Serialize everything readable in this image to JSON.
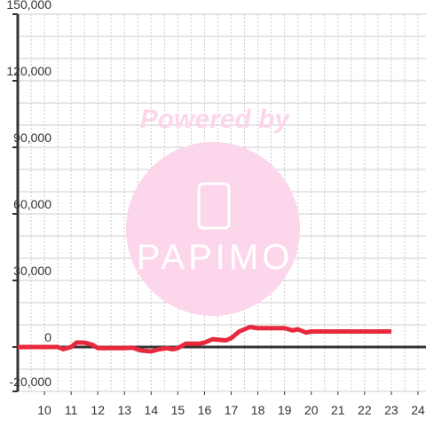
{
  "chart_data": {
    "type": "line",
    "watermark": {
      "top": "Powered by",
      "logo": "PAPIMO"
    },
    "x": [
      9,
      10,
      10.5,
      10.7,
      11,
      11.2,
      11.5,
      11.8,
      12,
      12.5,
      13,
      13.3,
      13.6,
      14,
      14.3,
      14.6,
      14.8,
      15,
      15.3,
      15.8,
      16,
      16.3,
      16.8,
      17,
      17.3,
      17.7,
      18,
      18.5,
      19,
      19.3,
      19.5,
      19.8,
      20,
      21,
      22,
      23
    ],
    "series": [
      {
        "color": "#e8283c",
        "values": [
          0,
          0,
          0,
          -1000,
          0,
          2000,
          2000,
          1000,
          -500,
          -500,
          -500,
          -300,
          -1500,
          -2000,
          -1000,
          -500,
          -1000,
          -500,
          1500,
          1500,
          2000,
          3500,
          3000,
          4000,
          7000,
          9000,
          8500,
          8500,
          8500,
          7500,
          8000,
          6500,
          7000,
          7000,
          7000,
          7000
        ]
      }
    ],
    "xlim": [
      9,
      24.3
    ],
    "xticks": [
      10,
      11,
      12,
      13,
      14,
      15,
      16,
      17,
      18,
      19,
      20,
      21,
      22,
      23,
      24
    ],
    "xminor": [
      9.5,
      10.5,
      11.5,
      12.5,
      13.5,
      14.5,
      15.5,
      16.5,
      17.5,
      18.5,
      19.5,
      20.5,
      21.5,
      22.5,
      23.5
    ],
    "ylim": [
      -20000,
      150000
    ],
    "yticks": [
      {
        "value": -20000,
        "label": "-20,000"
      },
      0,
      {
        "value": 30000,
        "label": "30,000"
      },
      {
        "value": 60000,
        "label": "60,000"
      },
      {
        "value": 90000,
        "label": "90,000"
      },
      {
        "value": 120000,
        "label": "120,000"
      },
      {
        "value": 150000,
        "label": "150,000"
      }
    ],
    "yminor": [
      -10000,
      10000,
      20000,
      40000,
      50000,
      70000,
      80000,
      100000,
      110000,
      130000,
      140000
    ],
    "grid": true
  }
}
